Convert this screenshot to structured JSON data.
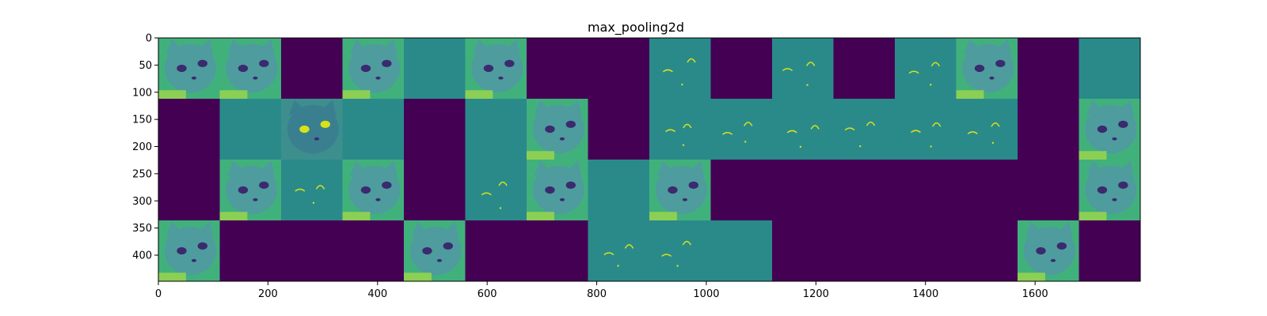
{
  "chart_data": {
    "type": "heatmap",
    "title": "max_pooling2d",
    "xlabel": "",
    "ylabel": "",
    "xlim": [
      0,
      1792
    ],
    "ylim": [
      448,
      0
    ],
    "x_ticks": [
      0,
      200,
      400,
      600,
      800,
      1000,
      1200,
      1400,
      1600
    ],
    "y_ticks": [
      0,
      50,
      100,
      150,
      200,
      250,
      300,
      350,
      400
    ],
    "grid": false,
    "colormap": "viridis",
    "grid_shape": {
      "rows": 4,
      "cols": 16,
      "tile_size": 112
    },
    "tiles": [
      [
        "cat",
        "cat",
        "dark",
        "cat",
        "flat",
        "cat",
        "dark",
        "dark",
        "edge",
        "dark",
        "edge",
        "dark",
        "edge",
        "cat",
        "dark",
        "flat"
      ],
      [
        "dark",
        "flat",
        "cat_inverted",
        "flat",
        "dark",
        "flat",
        "cat",
        "dark",
        "edge",
        "edge",
        "edge",
        "edge",
        "edge",
        "edge",
        "dark",
        "cat"
      ],
      [
        "dark",
        "cat",
        "edge",
        "cat",
        "dark",
        "edge",
        "cat",
        "flat",
        "cat",
        "dark",
        "dark",
        "dark",
        "dark",
        "dark",
        "dark",
        "cat"
      ],
      [
        "cat",
        "dark",
        "dark",
        "dark",
        "cat",
        "dark",
        "dark",
        "edge",
        "edge",
        "flat",
        "dark",
        "dark",
        "dark",
        "dark",
        "cat",
        "dark"
      ]
    ],
    "colors": {
      "dark": "#440154",
      "flat": "#2a8a8a",
      "cat_bg": "#41b17c",
      "cat_face": "#4e9c9e",
      "eye": "#3b2a6e",
      "bright": "#d8e219"
    }
  }
}
